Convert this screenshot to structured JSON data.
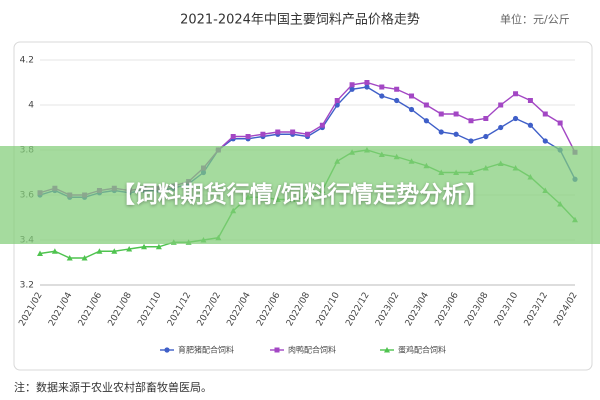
{
  "banner": "【饲料期货行情/饲料行情走势分析】",
  "chart_data": {
    "type": "line",
    "title": "2021-2024年中国主要饲料产品价格走势",
    "unit": "单位：元/公斤",
    "note": "注：数据来源于农业农村部畜牧兽医局。",
    "categories": [
      "2021/02",
      null,
      "2021/04",
      null,
      "2021/06",
      null,
      "2021/08",
      null,
      "2021/10",
      null,
      "2021/12",
      null,
      "2022/02",
      null,
      "2022/04",
      null,
      "2022/06",
      null,
      "2022/08",
      null,
      "2022/10",
      null,
      "2022/12",
      null,
      "2023/02",
      null,
      "2023/04",
      null,
      "2023/06",
      null,
      "2023/08",
      null,
      "2023/10",
      null,
      "2023/12",
      null,
      "2024/02"
    ],
    "series": [
      {
        "name": "育肥猪配合饲料",
        "color": "#3f5fc8",
        "marker": "circle",
        "values": [
          3.6,
          3.62,
          3.59,
          3.59,
          3.61,
          3.62,
          3.61,
          3.62,
          3.62,
          3.63,
          3.65,
          3.7,
          3.8,
          3.85,
          3.85,
          3.86,
          3.87,
          3.87,
          3.86,
          3.9,
          4.0,
          4.07,
          4.08,
          4.04,
          4.02,
          3.98,
          3.93,
          3.88,
          3.87,
          3.84,
          3.86,
          3.9,
          3.94,
          3.91,
          3.84,
          3.8,
          3.67
        ]
      },
      {
        "name": "肉鸭配合饲料",
        "color": "#a347c4",
        "marker": "square",
        "values": [
          3.61,
          3.63,
          3.6,
          3.6,
          3.62,
          3.63,
          3.62,
          3.63,
          3.63,
          3.64,
          3.66,
          3.72,
          3.8,
          3.86,
          3.86,
          3.87,
          3.88,
          3.88,
          3.87,
          3.91,
          4.02,
          4.09,
          4.1,
          4.08,
          4.07,
          4.04,
          4.0,
          3.96,
          3.96,
          3.93,
          3.94,
          4.0,
          4.05,
          4.02,
          3.96,
          3.92,
          3.79
        ]
      },
      {
        "name": "蛋鸡配合饲料",
        "color": "#4fc34f",
        "marker": "triangle",
        "values": [
          3.34,
          3.35,
          3.32,
          3.32,
          3.35,
          3.35,
          3.36,
          3.37,
          3.37,
          3.39,
          3.39,
          3.4,
          3.41,
          3.53,
          3.59,
          3.59,
          3.58,
          3.58,
          3.59,
          3.62,
          3.75,
          3.79,
          3.8,
          3.78,
          3.77,
          3.75,
          3.73,
          3.7,
          3.7,
          3.7,
          3.72,
          3.74,
          3.72,
          3.68,
          3.62,
          3.56,
          3.49
        ]
      }
    ],
    "ylim": [
      3.2,
      4.2
    ],
    "yticks": [
      3.2,
      3.4,
      3.6,
      3.8,
      4,
      4.2
    ],
    "grid": true
  }
}
